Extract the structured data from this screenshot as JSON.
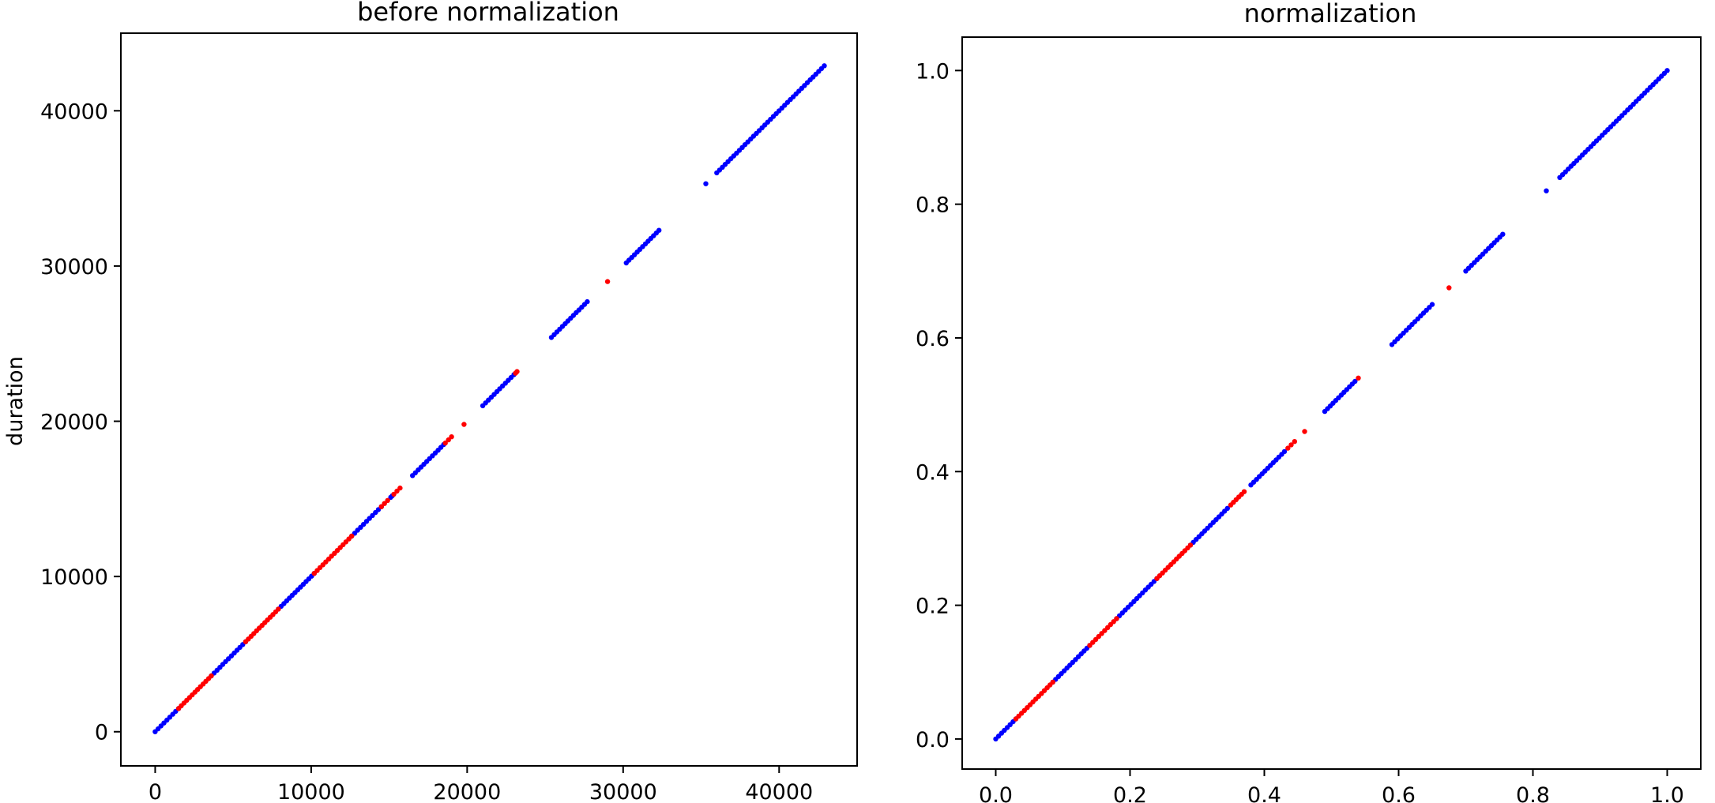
{
  "colors": {
    "series_a": "#0000ff",
    "series_b": "#ff0000",
    "axes": "#000000",
    "background": "#ffffff"
  },
  "chart_data": [
    {
      "type": "scatter",
      "title": "before normalization",
      "xlabel": "",
      "ylabel": "duration",
      "xlim": [
        -2200,
        45000
      ],
      "ylim": [
        -2200,
        45000
      ],
      "xticks": [
        0,
        10000,
        20000,
        30000,
        40000
      ],
      "yticks": [
        0,
        10000,
        20000,
        30000,
        40000
      ],
      "xtick_labels": [
        "0",
        "10000",
        "20000",
        "30000",
        "40000"
      ],
      "ytick_labels": [
        "0",
        "10000",
        "20000",
        "30000",
        "40000"
      ],
      "grid": false,
      "legend": "none",
      "series": [
        {
          "color": "#0000ff",
          "segments": [
            [
              0,
              1500
            ],
            [
              3600,
              5800
            ],
            [
              7900,
              10200
            ],
            [
              12600,
              14500
            ],
            [
              15100,
              15200
            ],
            [
              16500,
              18500
            ],
            [
              21000,
              23000
            ],
            [
              25400,
              27700
            ],
            [
              30200,
              32300
            ],
            [
              35300,
              35300
            ],
            [
              36000,
              42900
            ]
          ]
        },
        {
          "color": "#ff0000",
          "segments": [
            [
              1500,
              3600
            ],
            [
              5800,
              7900
            ],
            [
              10200,
              12600
            ],
            [
              14500,
              14900
            ],
            [
              15300,
              15700
            ],
            [
              18600,
              19000
            ],
            [
              19800,
              19800
            ],
            [
              23100,
              23200
            ],
            [
              29000,
              29000
            ]
          ]
        }
      ]
    },
    {
      "type": "scatter",
      "title": "normalization",
      "xlabel": "",
      "ylabel": "",
      "xlim": [
        -0.05,
        1.05
      ],
      "ylim": [
        -0.045,
        1.05
      ],
      "xticks": [
        0.0,
        0.2,
        0.4,
        0.6,
        0.8,
        1.0
      ],
      "yticks": [
        0.0,
        0.2,
        0.4,
        0.6,
        0.8,
        1.0
      ],
      "xtick_labels": [
        "0.0",
        "0.2",
        "0.4",
        "0.6",
        "0.8",
        "1.0"
      ],
      "ytick_labels": [
        "0.0",
        "0.2",
        "0.4",
        "0.6",
        "0.8",
        "1.0"
      ],
      "grid": false,
      "legend": "none",
      "series": [
        {
          "color": "#0000ff",
          "segments": [
            [
              0.0,
              0.03
            ],
            [
              0.085,
              0.14
            ],
            [
              0.18,
              0.24
            ],
            [
              0.29,
              0.345
            ],
            [
              0.38,
              0.43
            ],
            [
              0.49,
              0.535
            ],
            [
              0.59,
              0.65
            ],
            [
              0.7,
              0.755
            ],
            [
              0.82,
              0.82
            ],
            [
              0.84,
              1.0
            ]
          ]
        },
        {
          "color": "#ff0000",
          "segments": [
            [
              0.03,
              0.085
            ],
            [
              0.14,
              0.18
            ],
            [
              0.24,
              0.29
            ],
            [
              0.35,
              0.37
            ],
            [
              0.435,
              0.445
            ],
            [
              0.46,
              0.46
            ],
            [
              0.54,
              0.54
            ],
            [
              0.675,
              0.675
            ]
          ]
        }
      ]
    }
  ]
}
